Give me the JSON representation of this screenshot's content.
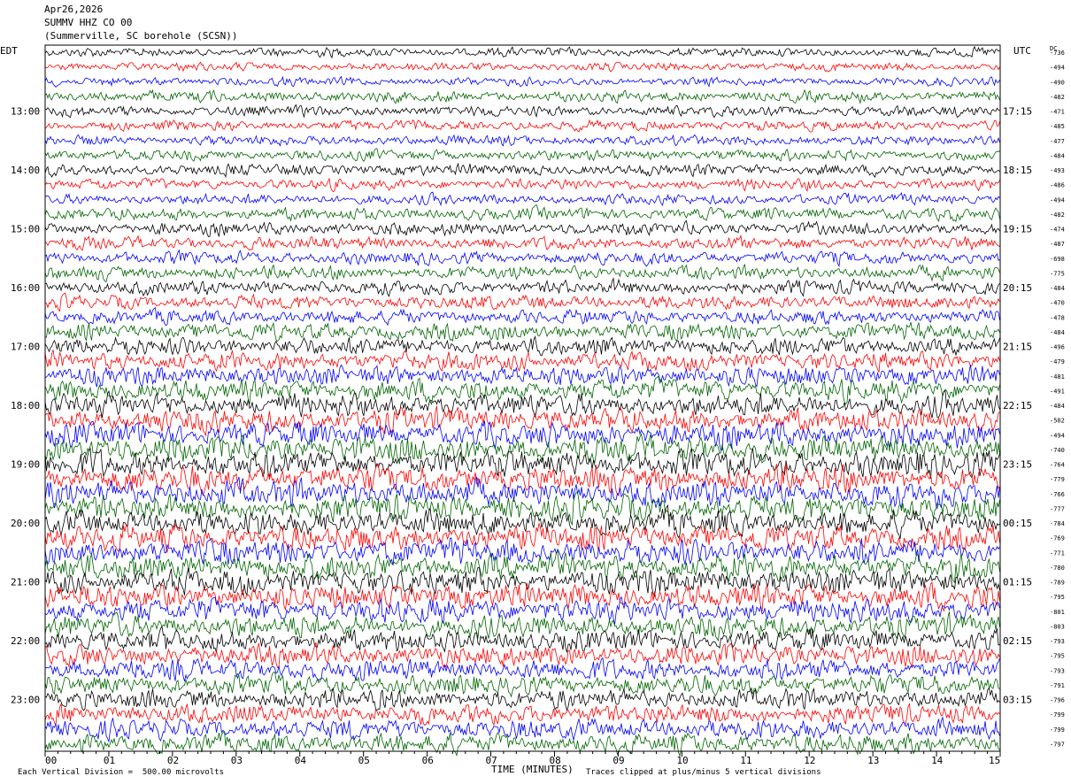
{
  "header": {
    "date": "Apr26,2026",
    "station": "SUMMV HHZ CO 00",
    "location": "(Summerville, SC borehole (SCSN))"
  },
  "left_zone": "EDT",
  "right_zone": "UTC",
  "dc_label": "DC",
  "footer": {
    "left": "Each Vertical Division =  500.00 microvolts",
    "center": "TIME (MINUTES)",
    "right": "Traces clipped at plus/minus 5 vertical divisions"
  },
  "chart_data": {
    "type": "line",
    "subtype": "helicorder",
    "trace_minutes": 15,
    "xlabel": "TIME (MINUTES)",
    "x_ticks": [
      "00",
      "01",
      "02",
      "03",
      "04",
      "05",
      "06",
      "07",
      "08",
      "09",
      "10",
      "11",
      "12",
      "13",
      "14",
      "15"
    ],
    "left_time_labels": [
      "13:00",
      "14:00",
      "15:00",
      "16:00",
      "17:00",
      "18:00",
      "19:00",
      "20:00",
      "21:00",
      "22:00",
      "23:00"
    ],
    "right_time_labels": [
      "17:15",
      "18:15",
      "19:15",
      "20:15",
      "21:15",
      "22:15",
      "23:15",
      "00:15",
      "01:15",
      "02:15",
      "03:15"
    ],
    "first_labeled_trace_index": 4,
    "trace_colors": [
      "#000000",
      "#ff0000",
      "#0000ff",
      "#006400"
    ],
    "dc_offsets": [
      "-736",
      "-494",
      "-490",
      "-482",
      "-471",
      "-485",
      "-477",
      "-484",
      "-493",
      "-486",
      "-494",
      "-482",
      "-474",
      "-487",
      "-698",
      "-775",
      "-484",
      "-470",
      "-478",
      "-484",
      "-496",
      "-479",
      "-481",
      "-491",
      "-484",
      "-502",
      "-494",
      "-740",
      "-764",
      "-779",
      "-766",
      "-777",
      "-784",
      "-769",
      "-771",
      "-780",
      "-789",
      "-795",
      "-801",
      "-803",
      "-793",
      "-795",
      "-793",
      "-791",
      "-796",
      "-799",
      "-799",
      "-797"
    ],
    "amplitude_divisions": [
      1.6,
      1.5,
      1.5,
      2.0,
      1.9,
      1.8,
      1.8,
      1.9,
      2.1,
      1.9,
      1.9,
      2.2,
      2.3,
      2.3,
      2.3,
      2.4,
      2.5,
      2.5,
      2.5,
      3.0,
      3.2,
      3.3,
      3.5,
      3.8,
      4.0,
      4.2,
      4.3,
      4.6,
      4.8,
      4.8,
      4.7,
      4.6,
      4.5,
      4.5,
      4.5,
      4.5,
      4.5,
      4.4,
      4.2,
      4.0,
      3.9,
      3.8,
      3.7,
      3.6,
      3.5,
      3.5,
      3.5,
      3.5
    ],
    "clip_divisions": 5,
    "division_microvolts": 500.0
  }
}
